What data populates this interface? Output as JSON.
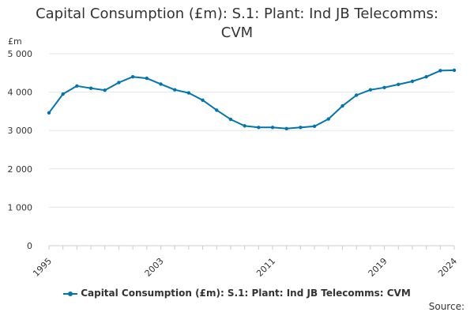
{
  "chart_data": {
    "type": "line",
    "title_lines": [
      "Capital Consumption (£m): S.1: Plant: Ind JB Telecomms:",
      "CVM"
    ],
    "ylabel": "£m",
    "xlabel": "",
    "ylim": [
      0,
      5000
    ],
    "yticks": [
      0,
      1000,
      2000,
      3000,
      4000,
      5000
    ],
    "ytick_labels": [
      "0",
      "1 000",
      "2 000",
      "3 000",
      "4 000",
      "5 000"
    ],
    "xlim": [
      1995,
      2024
    ],
    "xticks": [
      1995,
      2003,
      2011,
      2019,
      2024
    ],
    "xtick_labels": [
      "1995",
      "2003",
      "2011",
      "2019",
      "2024"
    ],
    "grid": true,
    "legend_position": "bottom",
    "series": [
      {
        "name": "Capital Consumption (£m): S.1: Plant: Ind JB Telecomms: CVM",
        "color": "#0075b0",
        "x": [
          1995,
          1996,
          1997,
          1998,
          1999,
          2000,
          2001,
          2002,
          2003,
          2004,
          2005,
          2006,
          2007,
          2008,
          2009,
          2010,
          2011,
          2012,
          2013,
          2014,
          2015,
          2016,
          2017,
          2018,
          2019,
          2020,
          2021,
          2022,
          2023,
          2024
        ],
        "values": [
          3460,
          3950,
          4160,
          4100,
          4050,
          4250,
          4400,
          4360,
          4210,
          4060,
          3980,
          3790,
          3530,
          3290,
          3120,
          3080,
          3080,
          3050,
          3080,
          3110,
          3300,
          3640,
          3920,
          4060,
          4120,
          4200,
          4280,
          4400,
          4560,
          4570
        ]
      }
    ],
    "source": "Source:"
  }
}
